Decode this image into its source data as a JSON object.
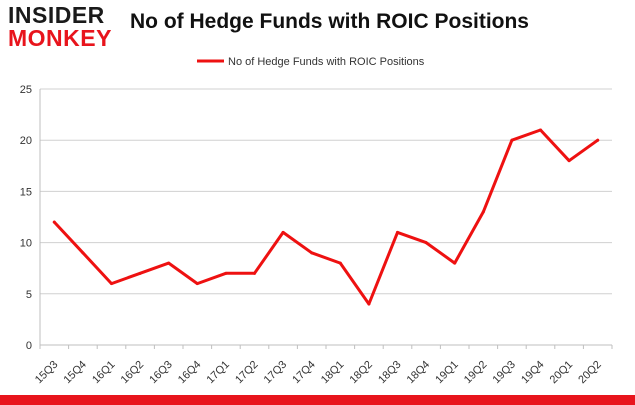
{
  "header": {
    "logo_top": "INSIDER",
    "logo_bottom": "MONKEY",
    "title": "No of Hedge Funds with ROIC Positions"
  },
  "colors": {
    "series": "#ee1111",
    "accent": "#e8141c",
    "grid": "#d0d0d0"
  },
  "chart_data": {
    "type": "line",
    "title": "No of Hedge Funds with ROIC Positions",
    "xlabel": "",
    "ylabel": "",
    "categories": [
      "15Q3",
      "15Q4",
      "16Q1",
      "16Q2",
      "16Q3",
      "16Q4",
      "17Q1",
      "17Q2",
      "17Q3",
      "17Q4",
      "18Q1",
      "18Q2",
      "18Q3",
      "18Q4",
      "19Q1",
      "19Q2",
      "19Q3",
      "19Q4",
      "20Q1",
      "20Q2"
    ],
    "series": [
      {
        "name": "No of Hedge Funds with ROIC Positions",
        "values": [
          12,
          9,
          6,
          7,
          8,
          6,
          7,
          7,
          11,
          9,
          8,
          4,
          11,
          10,
          8,
          13,
          20,
          21,
          18,
          20
        ]
      }
    ],
    "ylim": [
      0,
      25
    ],
    "yticks": [
      0,
      5,
      10,
      15,
      20,
      25
    ],
    "grid": true,
    "legend": "top-center"
  }
}
